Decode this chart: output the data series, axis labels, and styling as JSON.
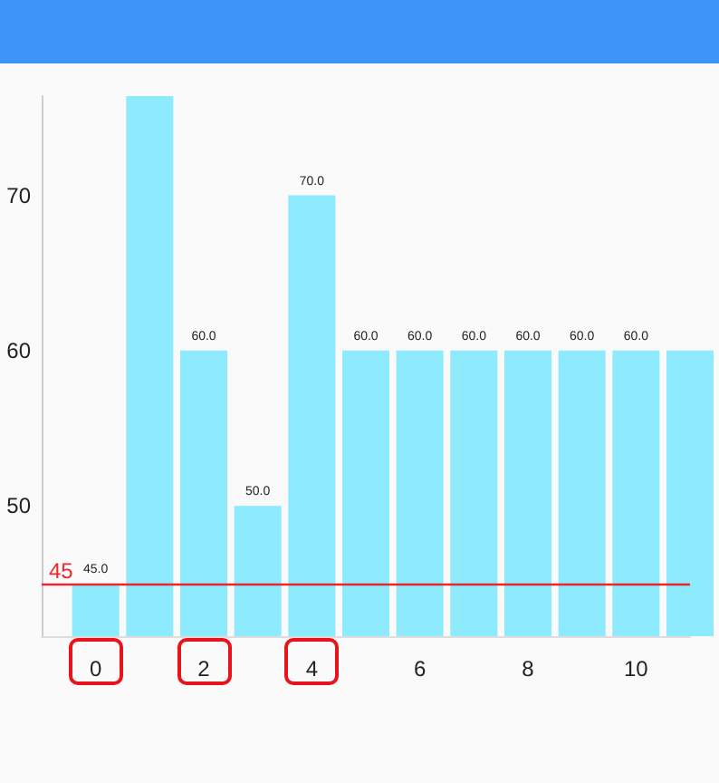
{
  "chart_data": {
    "type": "bar",
    "x": [
      0,
      1,
      2,
      3,
      4,
      5,
      6,
      7,
      8,
      9,
      10,
      11
    ],
    "values": [
      45,
      76.4,
      60,
      50,
      70,
      60,
      60,
      60,
      60,
      60,
      60,
      60
    ],
    "value_labels": [
      "45.0",
      null,
      "60.0",
      "50.0",
      "70.0",
      "60.0",
      "60.0",
      "60.0",
      "60.0",
      "60.0",
      "60.0",
      null
    ],
    "color": "#8eeafd",
    "xlim": [
      -1,
      11
    ],
    "xticks": [
      0,
      2,
      4,
      6,
      8,
      10
    ],
    "ylim": [
      41.6,
      76.4
    ],
    "yticks": [
      50,
      60,
      70
    ],
    "grid": false,
    "ref_lines": [
      {
        "axis": "y",
        "value": 45,
        "label": "45",
        "color": "#e8272f"
      }
    ]
  }
}
